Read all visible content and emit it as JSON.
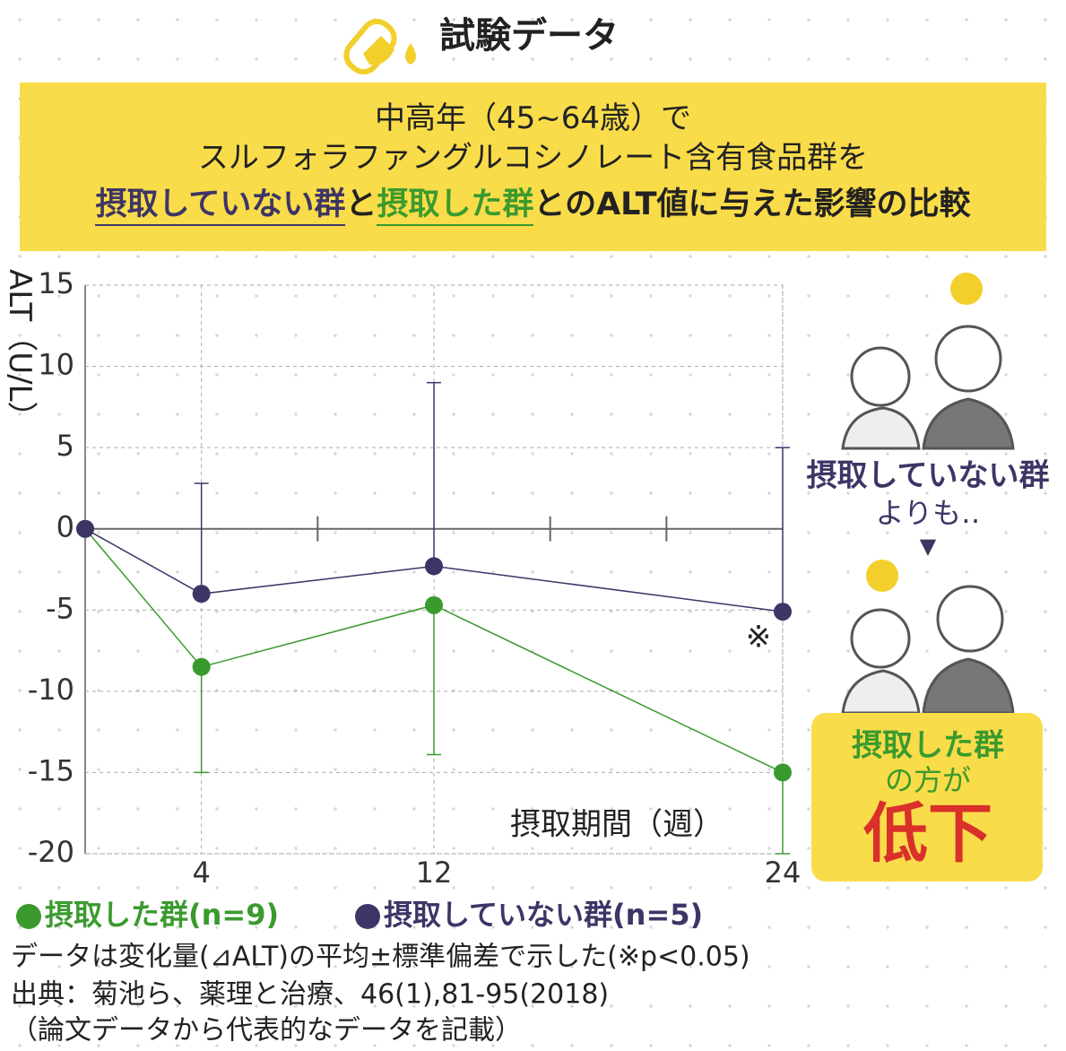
{
  "header": {
    "title": "試験データ"
  },
  "banner": {
    "line1": "中高年（45~64歳）で",
    "line2": "スルフォラファングルコシノレート含有食品群を",
    "line3": [
      "摂取していない群",
      "と",
      "摂取した群",
      "とのALT値に与えた影響の比較"
    ]
  },
  "chart_data": {
    "type": "line",
    "x_label": "摂取期間（週）",
    "y_label": "ALT（U/L）",
    "annotation": "※",
    "x": [
      0,
      4,
      12,
      24
    ],
    "xlim": [
      0,
      24
    ],
    "xticks": [
      4,
      12,
      24
    ],
    "xminorticks": [
      8,
      16,
      20
    ],
    "ylim": [
      -20,
      15
    ],
    "yticks": [
      -20,
      -15,
      -10,
      -5,
      0,
      5,
      10,
      15
    ],
    "grid": true,
    "series": [
      {
        "name": "摂取した群(n=9)",
        "color": "#3a9a2e",
        "values": [
          0,
          -8.5,
          -4.7,
          -15
        ],
        "errors": [
          null,
          6.5,
          9.2,
          6
        ],
        "error_direction": "down"
      },
      {
        "name": "摂取していない群(n=5)",
        "color": "#3d3566",
        "values": [
          0,
          -4,
          -2.3,
          -5.1
        ],
        "errors": [
          null,
          6.8,
          11.3,
          10.1
        ],
        "error_direction": "up"
      }
    ]
  },
  "side": {
    "not_taken": "摂取していない群",
    "than": "よりも‥",
    "arrow": "▼",
    "taken": "摂取した群",
    "is_more": "の方が",
    "result": "低下"
  },
  "notes": [
    "データは変化量(⊿ALT)の平均±標準偏差で示した(※p<0.05)",
    "出典：菊池ら、薬理と治療、46(1),81-95(2018)",
    "（論文データから代表的なデータを記載）"
  ]
}
